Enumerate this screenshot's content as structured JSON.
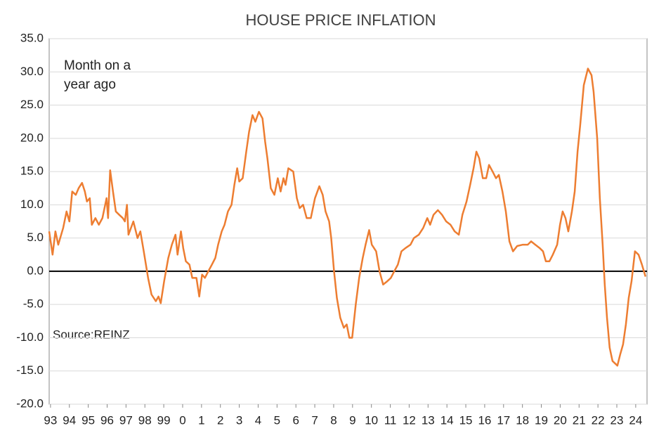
{
  "chart_data": {
    "type": "line",
    "title": "HOUSE PRICE INFLATION",
    "annotations": [
      "Month on a",
      "year ago"
    ],
    "source": "Source:REINZ",
    "grid": true,
    "xlim": [
      1992.93,
      2024.6
    ],
    "ylim": [
      -20,
      35
    ],
    "yticks": [
      {
        "value": -20,
        "label": "-20.0"
      },
      {
        "value": -15,
        "label": "-15.0"
      },
      {
        "value": -10,
        "label": "-10.0"
      },
      {
        "value": -5,
        "label": "-5.0"
      },
      {
        "value": 0,
        "label": "0.0"
      },
      {
        "value": 5,
        "label": "5.0"
      },
      {
        "value": 10,
        "label": "10.0"
      },
      {
        "value": 15,
        "label": "15.0"
      },
      {
        "value": 20,
        "label": "20.0"
      },
      {
        "value": 25,
        "label": "25.0"
      },
      {
        "value": 30,
        "label": "30.0"
      },
      {
        "value": 35,
        "label": "35.0"
      }
    ],
    "xticks": [
      {
        "value": 1993,
        "label": "93"
      },
      {
        "value": 1994,
        "label": "94"
      },
      {
        "value": 1995,
        "label": "95"
      },
      {
        "value": 1996,
        "label": "96"
      },
      {
        "value": 1997,
        "label": "97"
      },
      {
        "value": 1998,
        "label": "98"
      },
      {
        "value": 1999,
        "label": "99"
      },
      {
        "value": 2000,
        "label": "0"
      },
      {
        "value": 2001,
        "label": "1"
      },
      {
        "value": 2002,
        "label": "2"
      },
      {
        "value": 2003,
        "label": "3"
      },
      {
        "value": 2004,
        "label": "4"
      },
      {
        "value": 2005,
        "label": "5"
      },
      {
        "value": 2006,
        "label": "6"
      },
      {
        "value": 2007,
        "label": "7"
      },
      {
        "value": 2008,
        "label": "8"
      },
      {
        "value": 2009,
        "label": "9"
      },
      {
        "value": 2010,
        "label": "10"
      },
      {
        "value": 2011,
        "label": "11"
      },
      {
        "value": 2012,
        "label": "12"
      },
      {
        "value": 2013,
        "label": "13"
      },
      {
        "value": 2014,
        "label": "14"
      },
      {
        "value": 2015,
        "label": "15"
      },
      {
        "value": 2016,
        "label": "16"
      },
      {
        "value": 2017,
        "label": "17"
      },
      {
        "value": 2018,
        "label": "18"
      },
      {
        "value": 2019,
        "label": "19"
      },
      {
        "value": 2020,
        "label": "20"
      },
      {
        "value": 2021,
        "label": "21"
      },
      {
        "value": 2022,
        "label": "22"
      },
      {
        "value": 2023,
        "label": "23"
      },
      {
        "value": 2024,
        "label": "24"
      }
    ],
    "series": [
      {
        "color": "#ED7D31",
        "x": [
          1992.93,
          1993.11,
          1993.26,
          1993.41,
          1993.67,
          1993.85,
          1994.0,
          1994.15,
          1994.34,
          1994.49,
          1994.67,
          1994.82,
          1994.93,
          1995.08,
          1995.19,
          1995.38,
          1995.56,
          1995.75,
          1995.97,
          1996.05,
          1996.16,
          1996.31,
          1996.46,
          1996.64,
          1996.83,
          1996.94,
          1997.05,
          1997.13,
          1997.39,
          1997.61,
          1997.76,
          1997.94,
          1998.17,
          1998.35,
          1998.58,
          1998.72,
          1998.84,
          1999.02,
          1999.24,
          1999.43,
          1999.62,
          1999.73,
          1999.91,
          2000.03,
          2000.17,
          2000.36,
          2000.51,
          2000.73,
          2000.88,
          2001.03,
          2001.18,
          2001.36,
          2001.55,
          2001.73,
          2001.88,
          2002.07,
          2002.22,
          2002.4,
          2002.59,
          2002.74,
          2002.89,
          2003.0,
          2003.18,
          2003.37,
          2003.52,
          2003.7,
          2003.85,
          2004.04,
          2004.23,
          2004.37,
          2004.49,
          2004.67,
          2004.86,
          2005.04,
          2005.19,
          2005.34,
          2005.45,
          2005.6,
          2005.86,
          2006.05,
          2006.2,
          2006.38,
          2006.57,
          2006.79,
          2007.01,
          2007.24,
          2007.42,
          2007.57,
          2007.76,
          2007.87,
          2008.02,
          2008.17,
          2008.35,
          2008.54,
          2008.69,
          2008.83,
          2008.98,
          2009.17,
          2009.35,
          2009.54,
          2009.69,
          2009.88,
          2010.02,
          2010.25,
          2010.43,
          2010.62,
          2010.84,
          2011.03,
          2011.21,
          2011.4,
          2011.59,
          2011.81,
          2012.07,
          2012.25,
          2012.51,
          2012.74,
          2012.96,
          2013.11,
          2013.29,
          2013.52,
          2013.74,
          2013.96,
          2014.19,
          2014.41,
          2014.63,
          2014.82,
          2015.04,
          2015.23,
          2015.41,
          2015.56,
          2015.71,
          2015.9,
          2016.08,
          2016.23,
          2016.42,
          2016.6,
          2016.75,
          2016.94,
          2017.12,
          2017.31,
          2017.5,
          2017.72,
          2018.02,
          2018.28,
          2018.46,
          2018.68,
          2018.91,
          2019.09,
          2019.24,
          2019.43,
          2019.61,
          2019.84,
          2019.99,
          2020.13,
          2020.28,
          2020.43,
          2020.62,
          2020.77,
          2020.92,
          2021.06,
          2021.25,
          2021.47,
          2021.66,
          2021.77,
          2021.96,
          2022.1,
          2022.25,
          2022.36,
          2022.48,
          2022.62,
          2022.77,
          2023.03,
          2023.18,
          2023.33,
          2023.48,
          2023.63,
          2023.78,
          2023.96,
          2024.15,
          2024.33,
          2024.52
        ],
        "values": [
          6,
          2.5,
          6,
          4,
          6.5,
          9,
          7.5,
          12,
          11.5,
          12.5,
          13.3,
          12,
          10.5,
          11,
          7,
          8,
          7,
          8,
          11,
          8,
          15.2,
          12,
          9,
          8.5,
          8,
          7.5,
          10,
          5.5,
          7.5,
          5,
          6,
          3,
          -1,
          -3.5,
          -4.5,
          -3.8,
          -4.8,
          -1.5,
          2,
          4,
          5.5,
          2.5,
          6,
          3.5,
          1.5,
          1,
          -1,
          -1,
          -3.8,
          -0.5,
          -1,
          0,
          1,
          2,
          4,
          6,
          7,
          9,
          10,
          13,
          15.5,
          13.5,
          14,
          18,
          21,
          23.5,
          22.5,
          24,
          23,
          19.5,
          17,
          12.5,
          11.5,
          14,
          12,
          14,
          13,
          15.5,
          15,
          11,
          9.5,
          10,
          8,
          8,
          11,
          12.8,
          11.5,
          9,
          7.5,
          5,
          0,
          -4,
          -7,
          -8.5,
          -8,
          -10,
          -10,
          -5,
          -1,
          2,
          4,
          6.2,
          4,
          3,
          0,
          -2,
          -1.5,
          -1,
          0,
          1,
          3,
          3.5,
          4,
          5,
          5.5,
          6.5,
          8,
          7,
          8.5,
          9.2,
          8.5,
          7.5,
          7,
          6,
          5.5,
          8.5,
          10.5,
          13,
          15.5,
          18,
          17,
          14,
          14,
          16,
          15,
          14,
          14.5,
          12,
          9,
          4.5,
          3,
          3.8,
          4,
          4,
          4.5,
          4,
          3.5,
          3,
          1.5,
          1.5,
          2.5,
          4,
          7,
          9,
          8,
          6,
          9,
          12,
          18,
          22,
          28,
          30.5,
          29.5,
          27,
          20,
          11,
          4,
          -2,
          -7,
          -11.5,
          -13.5,
          -14.2,
          -12.5,
          -11,
          -8,
          -4,
          -1.5,
          3,
          2.5,
          1,
          -0.8
        ]
      }
    ]
  }
}
